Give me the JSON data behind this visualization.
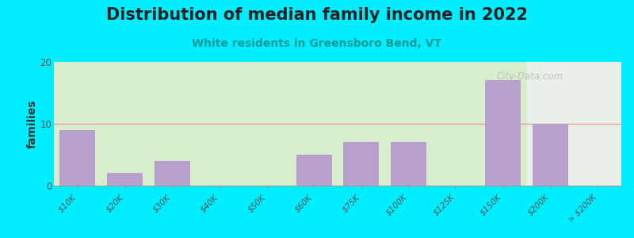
{
  "title": "Distribution of median family income in 2022",
  "subtitle": "White residents in Greensboro Bend, VT",
  "ylabel": "families",
  "categories": [
    "$10K",
    "$20K",
    "$30K",
    "$40K",
    "$50K",
    "$60K",
    "$75K",
    "$100K",
    "$125K",
    "$150K",
    "$200K",
    "> $200K"
  ],
  "values": [
    9,
    2,
    4,
    0,
    0,
    5,
    7,
    7,
    0,
    17,
    10,
    0
  ],
  "bar_color": "#b8a0cc",
  "ylim": [
    0,
    20
  ],
  "yticks": [
    0,
    10,
    20
  ],
  "background_outer": "#00eeff",
  "background_inner_left": "#d8edcc",
  "background_inner_right": "#e8f0e8",
  "background_far_right": "#e0ede8",
  "grid_color": "#e8a0a0",
  "title_fontsize": 15,
  "subtitle_fontsize": 10,
  "subtitle_color": "#009999",
  "watermark": "City-Data.com",
  "watermark_color": "#aaaaaa",
  "split_at_bar": 10,
  "title_color": "#222222"
}
